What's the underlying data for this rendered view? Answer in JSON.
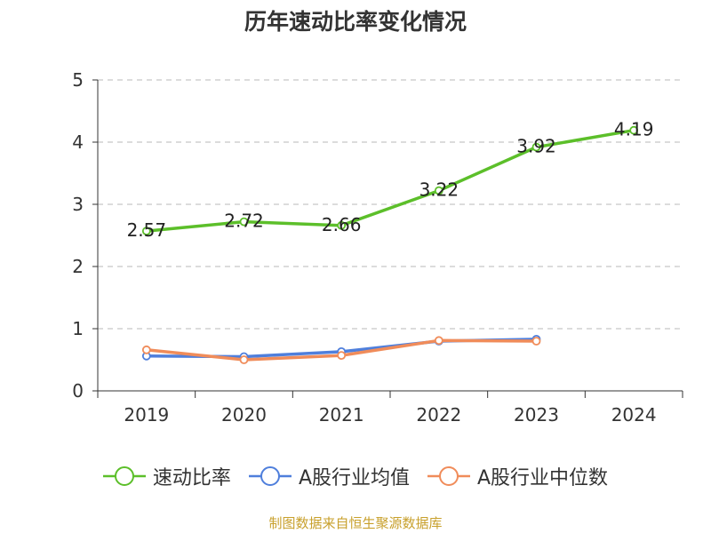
{
  "title": "历年速动比率变化情况",
  "source": "制图数据来自恒生聚源数据库",
  "chart_data": {
    "type": "line",
    "x": [
      "2019",
      "2020",
      "2021",
      "2022",
      "2023",
      "2024"
    ],
    "ylim": [
      0,
      5
    ],
    "yticks": [
      0,
      1,
      2,
      3,
      4,
      5
    ],
    "grid": true,
    "legend_position": "bottom",
    "series": [
      {
        "name": "速动比率",
        "color": "#5cbf2a",
        "values": [
          2.57,
          2.72,
          2.66,
          3.22,
          3.92,
          4.19
        ],
        "labels": [
          "2.57",
          "2.72",
          "2.66",
          "3.22",
          "3.92",
          "4.19"
        ]
      },
      {
        "name": "A股行业均值",
        "color": "#4f7fdc",
        "values": [
          0.56,
          0.55,
          0.63,
          0.8,
          0.83,
          null
        ]
      },
      {
        "name": "A股行业中位数",
        "color": "#f08c5a",
        "values": [
          0.66,
          0.5,
          0.57,
          0.81,
          0.8,
          null
        ]
      }
    ]
  }
}
